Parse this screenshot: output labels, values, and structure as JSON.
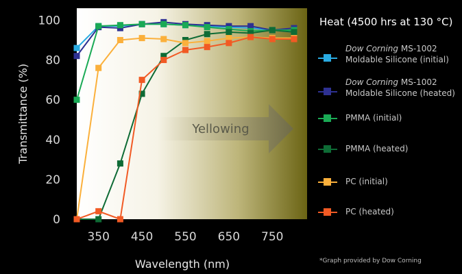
{
  "chart_data": {
    "type": "line",
    "xlabel": "Wavelength (nm)",
    "ylabel": "Transmittance (%)",
    "xlim": [
      300,
      830
    ],
    "ylim": [
      0,
      106
    ],
    "x_ticks": [
      350,
      450,
      550,
      650,
      750
    ],
    "y_ticks": [
      0,
      20,
      40,
      60,
      80,
      100
    ],
    "annotation": "Yellowing",
    "legend_title": "Heat (4500 hrs at 130 °C)",
    "legend_position": "right",
    "x": [
      300,
      350,
      400,
      450,
      500,
      550,
      600,
      650,
      700,
      750,
      800
    ],
    "series": [
      {
        "name": "Dow Corning MS-1002 Moldable Silicone (initial)",
        "name_italic": "Dow Corning",
        "name_rest": " MS-1002",
        "name_line2": "Moldable Silicone (initial)",
        "color": "#29abe2",
        "values": [
          86,
          97,
          97,
          98,
          98,
          97.5,
          97,
          96.5,
          96,
          95,
          94
        ]
      },
      {
        "name": "Dow Corning MS-1002 Moldable Silicone (heated)",
        "name_italic": "Dow Corning",
        "name_rest": " MS-1002",
        "name_line2": "Moldable Silicone (heated)",
        "color": "#2e3192",
        "values": [
          82,
          96.5,
          96,
          98,
          99,
          98,
          97.5,
          97,
          97,
          95,
          96
        ]
      },
      {
        "name": "PMMA (initial)",
        "name_line2": "",
        "color": "#1aaa55",
        "values": [
          60,
          97,
          97.5,
          98,
          98,
          97.5,
          96.5,
          95.5,
          94.5,
          95,
          95
        ]
      },
      {
        "name": "PMMA (heated)",
        "name_line2": "",
        "color": "#0e6b35",
        "values": [
          0,
          0,
          28,
          63,
          82,
          90,
          93,
          94,
          93.5,
          95,
          94
        ]
      },
      {
        "name": "PC (initial)",
        "name_line2": "",
        "color": "#fbb03b",
        "values": [
          0,
          76,
          90,
          91,
          90.5,
          88.5,
          89.5,
          91,
          91.5,
          91,
          91
        ]
      },
      {
        "name": "PC (heated)",
        "name_line2": "",
        "color": "#f15a24",
        "values": [
          0,
          4,
          0,
          70,
          80,
          85,
          86.5,
          88.5,
          91.5,
          90.5,
          90.5
        ]
      }
    ]
  },
  "footnote": "*Graph provided by Dow Corning",
  "colors": {
    "background": "#000000",
    "plot_gradient_start": "#ffffff",
    "plot_gradient_end": "#6b6414"
  }
}
